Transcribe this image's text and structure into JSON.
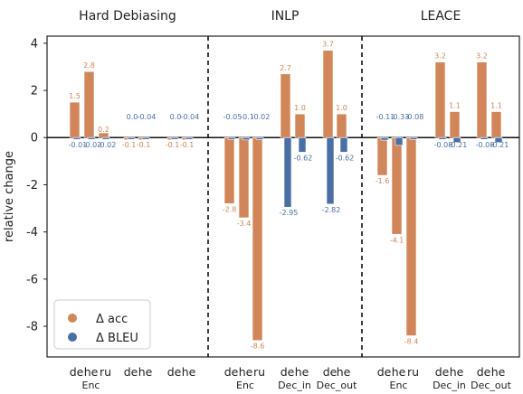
{
  "chart_data": {
    "type": "bar",
    "ylabel": "relative change",
    "ylim": [
      -9.3,
      4.3
    ],
    "yticks": [
      "4",
      "2",
      "0",
      "-2",
      "-4",
      "-6",
      "-8"
    ],
    "ytick_values": [
      4,
      2,
      0,
      -2,
      -4,
      -6,
      -8
    ],
    "legend": {
      "position": "lower-left",
      "entries": [
        "Δ acc",
        "Δ BLEU"
      ]
    },
    "colors": {
      "acc": "#d1865a",
      "bleu": "#4a6fa5"
    },
    "panels": [
      {
        "title": "Hard Debiasing",
        "groups": [
          {
            "label": "Enc",
            "cats": [
              "de",
              "he",
              "ru"
            ],
            "acc": [
              1.5,
              2.8,
              0.2
            ],
            "bleu": [
              -0.01,
              -0.02,
              -0.02
            ],
            "acc_labels": [
              "1.5",
              "2.8",
              "0.2"
            ],
            "bleu_labels": [
              "-0.01",
              "-0.02",
              "-0.02"
            ]
          },
          {
            "label": "",
            "cats": [
              "de",
              "he"
            ],
            "acc": [
              -0.1,
              -0.1
            ],
            "bleu": [
              0.0,
              -0.04
            ],
            "acc_labels": [
              "-0.1",
              "-0.1"
            ],
            "bleu_labels": [
              "0.0",
              "-0.04"
            ]
          },
          {
            "label": "",
            "cats": [
              "de",
              "he"
            ],
            "acc": [
              -0.1,
              -0.1
            ],
            "bleu": [
              0.0,
              -0.04
            ],
            "acc_labels": [
              "-0.1",
              "-0.1"
            ],
            "bleu_labels": [
              "0.0",
              "-0.04"
            ]
          }
        ]
      },
      {
        "title": "INLP",
        "groups": [
          {
            "label": "Enc",
            "cats": [
              "de",
              "he",
              "ru"
            ],
            "acc": [
              -2.8,
              -3.4,
              -8.6
            ],
            "bleu": [
              -0.05,
              -0.1,
              -0.02
            ],
            "acc_labels": [
              "-2.8",
              "-3.4",
              "-8.6"
            ],
            "bleu_labels": [
              "-0.05",
              "-0.1",
              "-0.02"
            ]
          },
          {
            "label": "Dec_in",
            "cats": [
              "de",
              "he"
            ],
            "acc": [
              2.7,
              1.0
            ],
            "bleu": [
              -2.95,
              -0.62
            ],
            "acc_labels": [
              "2.7",
              "1.0"
            ],
            "bleu_labels": [
              "-2.95",
              "-0.62"
            ]
          },
          {
            "label": "Dec_out",
            "cats": [
              "de",
              "he"
            ],
            "acc": [
              3.7,
              1.0
            ],
            "bleu": [
              -2.82,
              -0.62
            ],
            "acc_labels": [
              "3.7",
              "1.0"
            ],
            "bleu_labels": [
              "-2.82",
              "-0.62"
            ]
          }
        ]
      },
      {
        "title": "LEACE",
        "groups": [
          {
            "label": "Enc",
            "cats": [
              "de",
              "he",
              "ru"
            ],
            "acc": [
              -1.6,
              -4.1,
              -8.4
            ],
            "bleu": [
              -0.11,
              -0.33,
              -0.08
            ],
            "acc_labels": [
              "-1.6",
              "-4.1",
              "-8.4"
            ],
            "bleu_labels": [
              "-0.11",
              "-0.33",
              "-0.08"
            ]
          },
          {
            "label": "Dec_in",
            "cats": [
              "de",
              "he"
            ],
            "acc": [
              3.2,
              1.1
            ],
            "bleu": [
              -0.08,
              -0.21
            ],
            "acc_labels": [
              "3.2",
              "1.1"
            ],
            "bleu_labels": [
              "-0.08",
              "-0.21"
            ]
          },
          {
            "label": "Dec_out",
            "cats": [
              "de",
              "he"
            ],
            "acc": [
              3.2,
              1.1
            ],
            "bleu": [
              -0.08,
              -0.21
            ],
            "acc_labels": [
              "3.2",
              "1.1"
            ],
            "bleu_labels": [
              "-0.08",
              "-0.21"
            ]
          }
        ]
      }
    ]
  }
}
